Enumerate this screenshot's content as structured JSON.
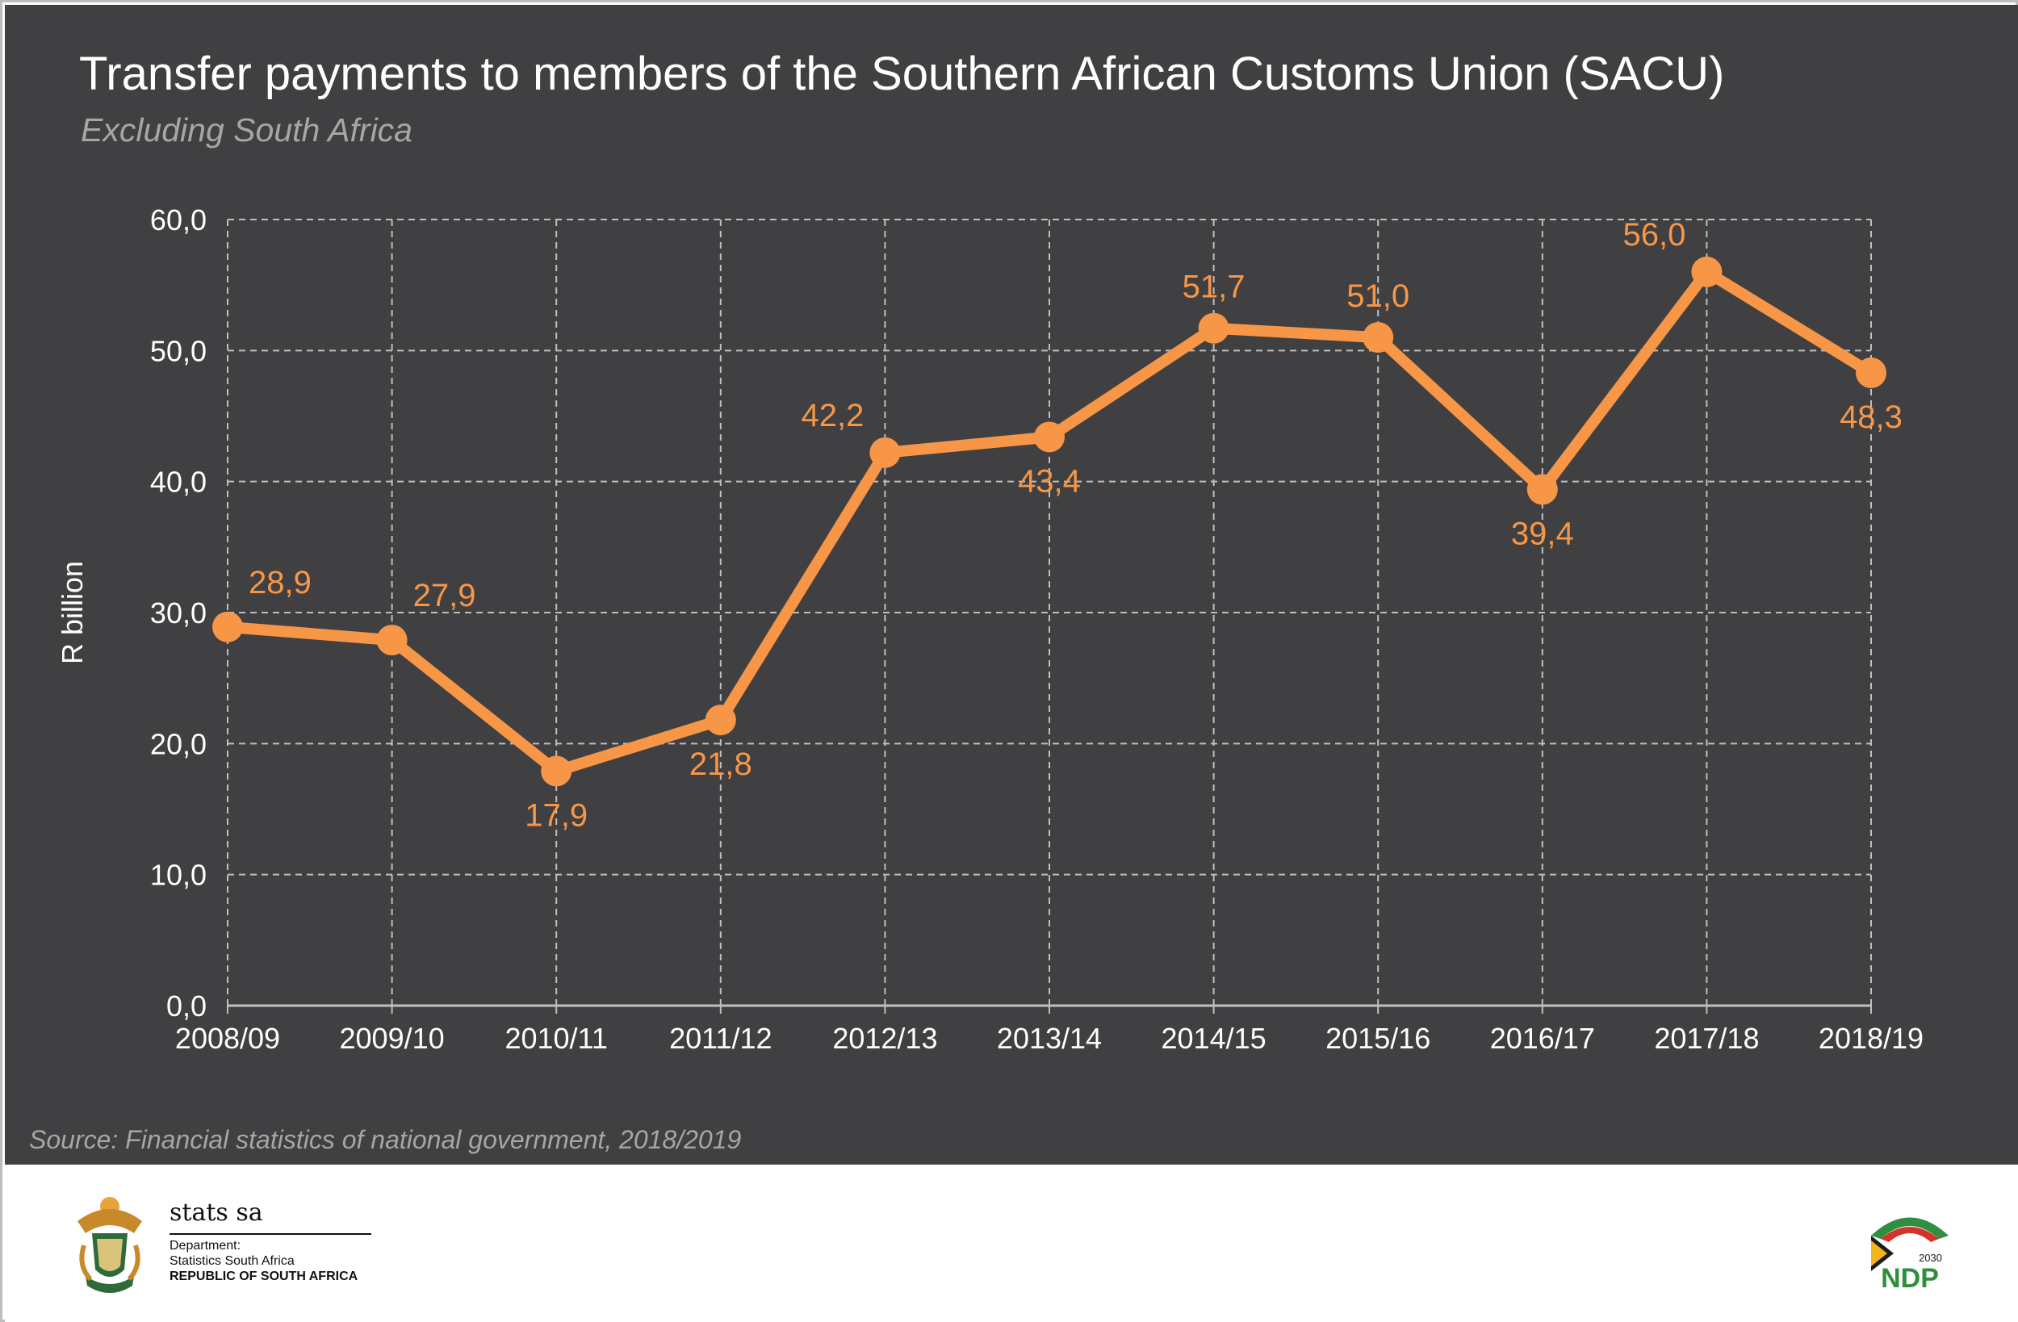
{
  "title": "Transfer payments to members of the Southern African Customs Union (SACU)",
  "subtitle": "Excluding South Africa",
  "source": "Source: Financial statistics of national government, 2018/2019",
  "colors": {
    "background": "#404042",
    "line": "#f79646",
    "grid": "#bfbfbf",
    "text": "#ffffff"
  },
  "chart_data": {
    "type": "line",
    "categories": [
      "2008/09",
      "2009/10",
      "2010/11",
      "2011/12",
      "2012/13",
      "2013/14",
      "2014/15",
      "2015/16",
      "2016/17",
      "2017/18",
      "2018/19"
    ],
    "series": [
      {
        "name": "Transfer payments",
        "values": [
          28.9,
          27.9,
          17.9,
          21.8,
          42.2,
          43.4,
          51.7,
          51.0,
          39.4,
          56.0,
          48.3
        ],
        "labels": [
          "28,9",
          "27,9",
          "17,9",
          "21,8",
          "42,2",
          "43,4",
          "51,7",
          "51,0",
          "39,4",
          "56,0",
          "48,3"
        ],
        "label_positions": [
          "above-right",
          "above-right",
          "below",
          "below",
          "above-left",
          "below",
          "above",
          "above",
          "below",
          "above-left",
          "below"
        ]
      }
    ],
    "ylabel": "R billion",
    "xlabel": "",
    "ylim": [
      0,
      60
    ],
    "yticks": [
      0,
      10,
      20,
      30,
      40,
      50,
      60
    ],
    "ytick_labels": [
      "0,0",
      "10,0",
      "20,0",
      "30,0",
      "40,0",
      "50,0",
      "60,0"
    ],
    "grid": true
  },
  "footer": {
    "brand_name": "stats sa",
    "department": "Department:",
    "organisation": "Statistics South Africa",
    "republic": "REPUBLIC OF SOUTH AFRICA",
    "ndp_logo": {
      "name": "ndp-2030-logo",
      "text": "NDP",
      "year": "2030"
    },
    "coat_of_arms": "coat-of-arms-icon"
  }
}
